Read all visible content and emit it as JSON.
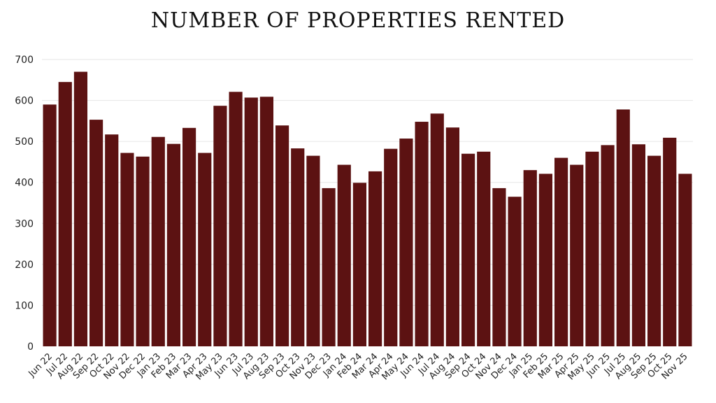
{
  "chart_data": {
    "type": "bar",
    "title": "NUMBER OF PROPERTIES RENTED",
    "xlabel": "",
    "ylabel": "",
    "ylim": [
      0,
      700
    ],
    "yticks": [
      0,
      100,
      200,
      300,
      400,
      500,
      600,
      700
    ],
    "grid": true,
    "legend": "none",
    "bar_color": "#5c1212",
    "categories": [
      "Jun 22",
      "Jul 22",
      "Aug 22",
      "Sep 22",
      "Oct 22",
      "Nov 22",
      "Dec 22",
      "Jan 23",
      "Feb 23",
      "Mar 23",
      "Apr 23",
      "May 23",
      "Jun 23",
      "Jul 23",
      "Aug 23",
      "Sep 23",
      "Oct 23",
      "Nov 23",
      "Dec 23",
      "Jan 24",
      "Feb 24",
      "Mar 24",
      "Apr 24",
      "May 24",
      "Jun 24",
      "Jul 24",
      "Aug 24",
      "Sep 24",
      "Oct 24",
      "Nov 24",
      "Dec 24",
      "Jan 25",
      "Feb 25",
      "Mar 25",
      "Apr 25",
      "May 25",
      "Jun 25",
      "Jul 25",
      "Aug 25",
      "Sep 25",
      "Oct 25",
      "Nov 25"
    ],
    "values": [
      590,
      645,
      670,
      553,
      517,
      472,
      463,
      511,
      494,
      533,
      472,
      587,
      621,
      607,
      609,
      539,
      483,
      465,
      386,
      443,
      399,
      427,
      482,
      507,
      548,
      568,
      534,
      470,
      475,
      386,
      365,
      430,
      421,
      460,
      443,
      475,
      491,
      578,
      493,
      465,
      509,
      421
    ]
  }
}
